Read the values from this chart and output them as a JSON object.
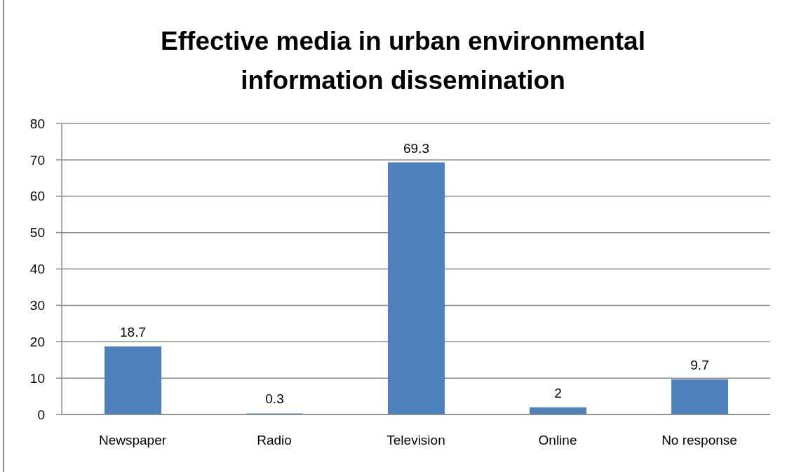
{
  "chart_data": {
    "type": "bar",
    "title": "Effective media in urban environmental information dissemination",
    "categories": [
      "Newspaper",
      "Radio",
      "Television",
      "Online",
      "No response"
    ],
    "values": [
      18.7,
      0.3,
      69.3,
      2,
      9.7
    ],
    "color": "#4f81bd",
    "ylim": [
      0,
      80
    ],
    "yticks": [
      0,
      10,
      20,
      30,
      40,
      50,
      60,
      70,
      80
    ],
    "grid": "y",
    "data_labels": true
  }
}
